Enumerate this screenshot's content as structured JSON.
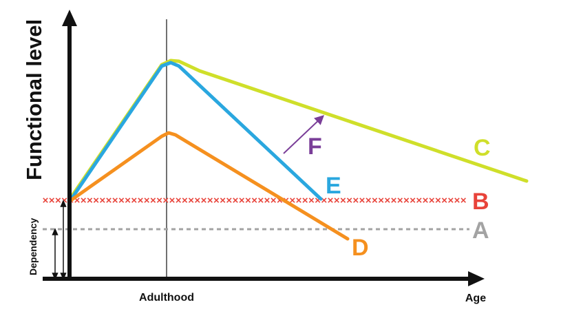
{
  "labels": {
    "y_axis": "Functional level",
    "dependency": "Dependency",
    "adulthood": "Adulthood",
    "age": "Age"
  },
  "curves": {
    "A": {
      "label": "A",
      "color": "#a3a3a3"
    },
    "B": {
      "label": "B",
      "color": "#e8433a"
    },
    "C": {
      "label": "C",
      "color": "#cfdf2a"
    },
    "D": {
      "label": "D",
      "color": "#f5901f"
    },
    "E": {
      "label": "E",
      "color": "#2aa7df"
    },
    "F": {
      "label": "F",
      "color": "#7a3e98"
    }
  },
  "axis_color": "#111111"
}
